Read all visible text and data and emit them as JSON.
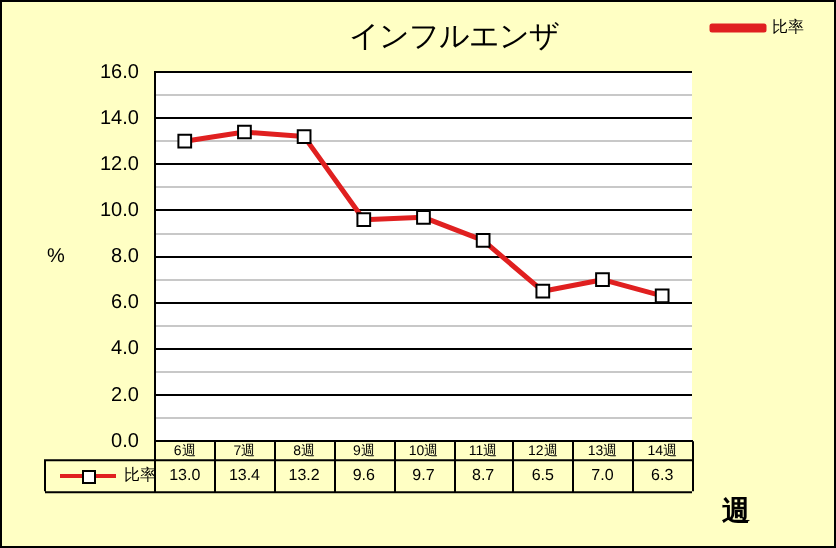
{
  "chart_data": {
    "type": "line",
    "title": "インフルエンザ",
    "xlabel": "週",
    "ylabel": "%",
    "categories": [
      "6週",
      "7週",
      "8週",
      "9週",
      "10週",
      "11週",
      "12週",
      "13週",
      "14週"
    ],
    "series": [
      {
        "name": "比率",
        "color": "#e02020",
        "values": [
          13.0,
          13.4,
          13.2,
          9.6,
          9.7,
          8.7,
          6.5,
          7.0,
          6.3
        ],
        "value_labels": [
          "13.0",
          "13.4",
          "13.2",
          "9.6",
          "9.7",
          "8.7",
          "6.5",
          "7.0",
          "6.3"
        ]
      }
    ],
    "ylim": [
      0,
      16
    ],
    "yticks": [
      {
        "value": 0,
        "label": "0.0"
      },
      {
        "value": 1,
        "label": null
      },
      {
        "value": 2,
        "label": "2.0"
      },
      {
        "value": 3,
        "label": null
      },
      {
        "value": 4,
        "label": "4.0"
      },
      {
        "value": 5,
        "label": null
      },
      {
        "value": 6,
        "label": "6.0"
      },
      {
        "value": 7,
        "label": null
      },
      {
        "value": 8,
        "label": "8.0"
      },
      {
        "value": 9,
        "label": null
      },
      {
        "value": 10,
        "label": "10.0"
      },
      {
        "value": 11,
        "label": null
      },
      {
        "value": 12,
        "label": "12.0"
      },
      {
        "value": 13,
        "label": null
      },
      {
        "value": 14,
        "label": "14.0"
      },
      {
        "value": 15,
        "label": null
      },
      {
        "value": 16,
        "label": "16.0"
      }
    ],
    "grid": "y",
    "legend": "top right",
    "marker": "square",
    "line_style": "solid"
  }
}
